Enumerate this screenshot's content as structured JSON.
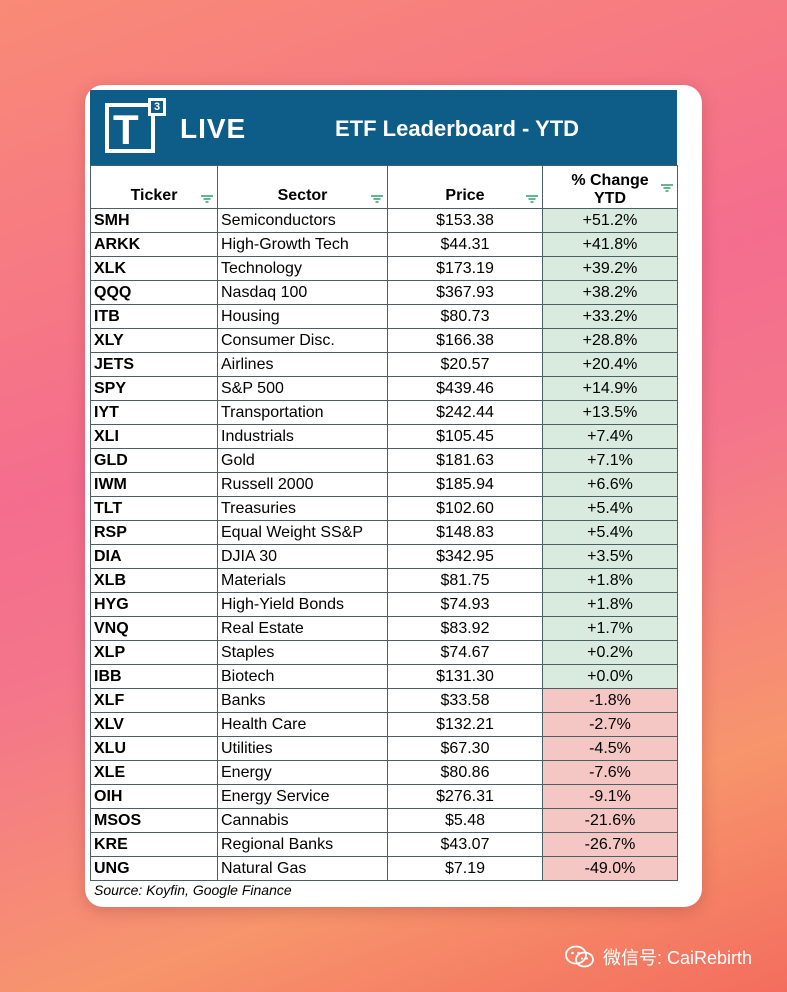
{
  "banner": {
    "logo_superscript": "3",
    "logo_letter": "T",
    "logo_word": "LIVE",
    "title": "ETF Leaderboard - YTD"
  },
  "table": {
    "columns": [
      "Ticker",
      "Sector",
      "Price",
      "% Change YTD"
    ],
    "rows": [
      {
        "ticker": "SMH",
        "sector": "Semiconductors",
        "price": "$153.38",
        "change": "+51.2%"
      },
      {
        "ticker": "ARKK",
        "sector": "High-Growth Tech",
        "price": "$44.31",
        "change": "+41.8%"
      },
      {
        "ticker": "XLK",
        "sector": "Technology",
        "price": "$173.19",
        "change": "+39.2%"
      },
      {
        "ticker": "QQQ",
        "sector": "Nasdaq 100",
        "price": "$367.93",
        "change": "+38.2%"
      },
      {
        "ticker": "ITB",
        "sector": "Housing",
        "price": "$80.73",
        "change": "+33.2%"
      },
      {
        "ticker": "XLY",
        "sector": "Consumer Disc.",
        "price": "$166.38",
        "change": "+28.8%"
      },
      {
        "ticker": "JETS",
        "sector": "Airlines",
        "price": "$20.57",
        "change": "+20.4%"
      },
      {
        "ticker": "SPY",
        "sector": "S&P 500",
        "price": "$439.46",
        "change": "+14.9%"
      },
      {
        "ticker": "IYT",
        "sector": "Transportation",
        "price": "$242.44",
        "change": "+13.5%"
      },
      {
        "ticker": "XLI",
        "sector": "Industrials",
        "price": "$105.45",
        "change": "+7.4%"
      },
      {
        "ticker": "GLD",
        "sector": "Gold",
        "price": "$181.63",
        "change": "+7.1%"
      },
      {
        "ticker": "IWM",
        "sector": "Russell 2000",
        "price": "$185.94",
        "change": "+6.6%"
      },
      {
        "ticker": "TLT",
        "sector": "Treasuries",
        "price": "$102.60",
        "change": "+5.4%"
      },
      {
        "ticker": "RSP",
        "sector": "Equal Weight SS&P",
        "price": "$148.83",
        "change": "+5.4%"
      },
      {
        "ticker": "DIA",
        "sector": "DJIA 30",
        "price": "$342.95",
        "change": "+3.5%"
      },
      {
        "ticker": "XLB",
        "sector": "Materials",
        "price": "$81.75",
        "change": "+1.8%"
      },
      {
        "ticker": "HYG",
        "sector": "High-Yield Bonds",
        "price": "$74.93",
        "change": "+1.8%"
      },
      {
        "ticker": "VNQ",
        "sector": "Real Estate",
        "price": "$83.92",
        "change": "+1.7%"
      },
      {
        "ticker": "XLP",
        "sector": "Staples",
        "price": "$74.67",
        "change": "+0.2%"
      },
      {
        "ticker": "IBB",
        "sector": "Biotech",
        "price": "$131.30",
        "change": "+0.0%"
      },
      {
        "ticker": "XLF",
        "sector": "Banks",
        "price": "$33.58",
        "change": "-1.8%"
      },
      {
        "ticker": "XLV",
        "sector": "Health Care",
        "price": "$132.21",
        "change": "-2.7%"
      },
      {
        "ticker": "XLU",
        "sector": "Utilities",
        "price": "$67.30",
        "change": "-4.5%"
      },
      {
        "ticker": "XLE",
        "sector": "Energy",
        "price": "$80.86",
        "change": "-7.6%"
      },
      {
        "ticker": "OIH",
        "sector": "Energy Service",
        "price": "$276.31",
        "change": "-9.1%"
      },
      {
        "ticker": "MSOS",
        "sector": "Cannabis",
        "price": "$5.48",
        "change": "-21.6%"
      },
      {
        "ticker": "KRE",
        "sector": "Regional Banks",
        "price": "$43.07",
        "change": "-26.7%"
      },
      {
        "ticker": "UNG",
        "sector": "Natural Gas",
        "price": "$7.19",
        "change": "-49.0%"
      }
    ]
  },
  "source": "Source: Koyfin, Google Finance",
  "watermark": {
    "icon": "wechat-icon",
    "text": "微信号: CaiRebirth"
  },
  "colors": {
    "banner": "#0e5d88",
    "positive": "#d9eadf",
    "negative": "#f4c6c4",
    "filter_icon": "#2e9e6b"
  }
}
